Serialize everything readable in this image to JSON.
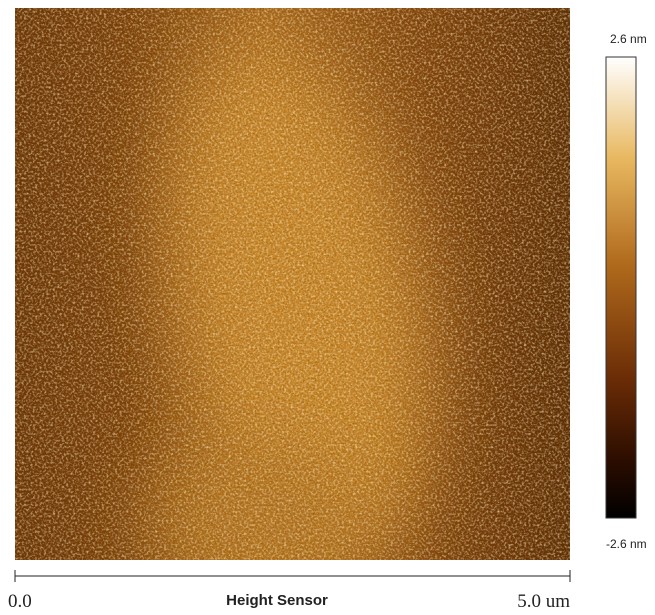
{
  "image": {
    "scale_max": "2.6 nm",
    "scale_min": "-2.6 nm",
    "axis_start": "0.0",
    "title": "Height Sensor",
    "axis_end": "5.0 um"
  }
}
